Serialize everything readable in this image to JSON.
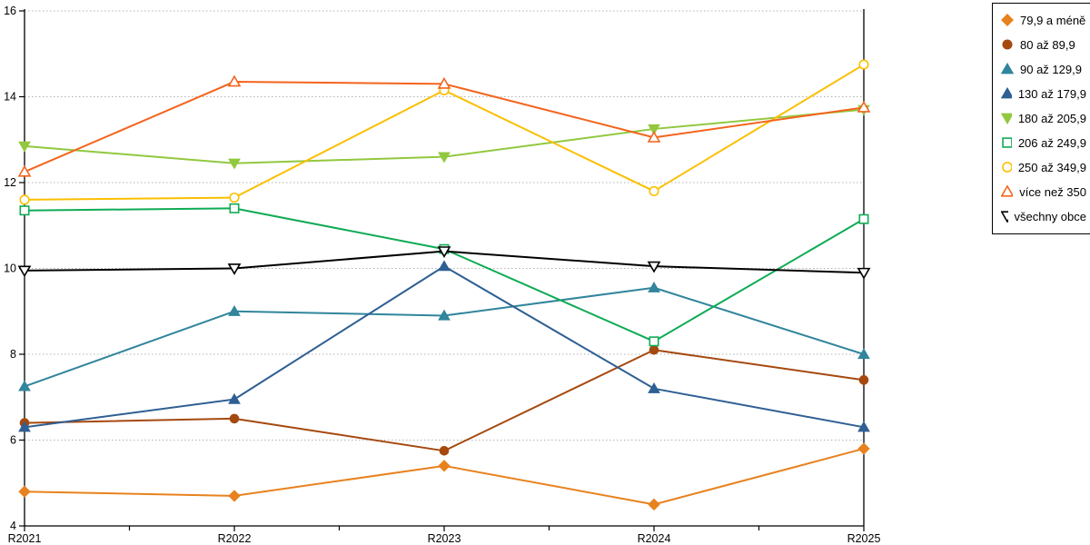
{
  "chart_data": {
    "type": "line",
    "title": "",
    "xlabel": "",
    "ylabel": "",
    "categories": [
      "R2021",
      "R2022",
      "R2023",
      "R2024",
      "R2025"
    ],
    "y_tick_labels": [
      "4",
      "6",
      "8",
      "10",
      "12",
      "14",
      "16"
    ],
    "ylim": [
      4,
      16
    ],
    "ytick_step": 2,
    "grid": "horizontal-dotted",
    "legend_position": "right",
    "series": [
      {
        "name": "79,9 a méně",
        "color": "#E8821E",
        "marker": "diamond",
        "fill": "solid",
        "values": [
          4.8,
          4.7,
          5.4,
          4.5,
          5.8
        ]
      },
      {
        "name": "80 až 89,9",
        "color": "#A5490F",
        "marker": "circle",
        "fill": "solid",
        "values": [
          6.4,
          6.5,
          5.75,
          8.1,
          7.4
        ]
      },
      {
        "name": "90 až 129,9",
        "color": "#31859C",
        "marker": "triangle-up",
        "fill": "solid",
        "values": [
          7.25,
          9.0,
          8.9,
          9.55,
          8.0
        ]
      },
      {
        "name": "130 až 179,9",
        "color": "#2F5F93",
        "marker": "triangle-up",
        "fill": "solid",
        "values": [
          6.3,
          6.95,
          10.05,
          7.2,
          6.3
        ]
      },
      {
        "name": "180 až 205,9",
        "color": "#92C83E",
        "marker": "triangle-down",
        "fill": "solid",
        "values": [
          12.85,
          12.45,
          12.6,
          13.25,
          13.7
        ]
      },
      {
        "name": "206 až 249,9",
        "color": "#0FAB55",
        "marker": "square",
        "fill": "open",
        "values": [
          11.35,
          11.4,
          10.45,
          8.3,
          11.15
        ]
      },
      {
        "name": "250 až 349,9",
        "color": "#FBBF00",
        "marker": "circle",
        "fill": "open",
        "values": [
          11.6,
          11.65,
          14.15,
          11.8,
          14.75
        ]
      },
      {
        "name": "více než 350",
        "color": "#F4641D",
        "marker": "triangle-up",
        "fill": "open",
        "values": [
          12.25,
          14.35,
          14.3,
          13.05,
          13.75
        ]
      },
      {
        "name": "všechny obce",
        "color": "#000000",
        "marker": "triangle-down",
        "fill": "open",
        "values": [
          9.95,
          10.0,
          10.4,
          10.05,
          9.9
        ]
      }
    ]
  },
  "style": {
    "grid_color": "#B3B3B3",
    "axis_color": "#000000",
    "background": "#FFFFFF"
  }
}
